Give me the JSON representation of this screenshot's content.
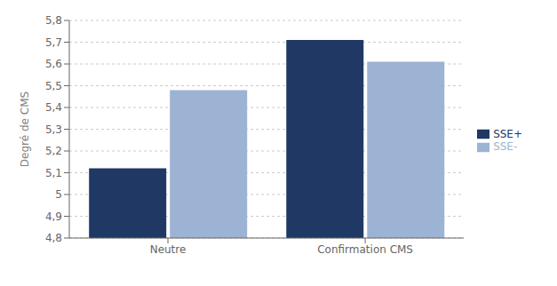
{
  "chart_data": {
    "type": "bar",
    "categories": [
      "Neutre",
      "Confirmation CMS"
    ],
    "series": [
      {
        "name": "SSE+",
        "color": "#1F3864",
        "values": [
          5.12,
          5.71
        ]
      },
      {
        "name": "SSE-",
        "color": "#9DB3D4",
        "values": [
          5.48,
          5.61
        ]
      }
    ],
    "ylabel": "Degré de CMS",
    "ylim": [
      4.8,
      5.8
    ],
    "yticks": [
      {
        "value": 4.8,
        "label": "4,8"
      },
      {
        "value": 4.9,
        "label": "4,9"
      },
      5,
      {
        "value": 5.1,
        "label": "5,1"
      },
      {
        "value": 5.2,
        "label": "5,2"
      },
      {
        "value": 5.3,
        "label": "5,3"
      },
      {
        "value": 5.4,
        "label": "5,4"
      },
      {
        "value": 5.5,
        "label": "5,5"
      },
      {
        "value": 5.6,
        "label": "5,6"
      },
      {
        "value": 5.7,
        "label": "5,7"
      },
      {
        "value": 5.8,
        "label": "5,8"
      }
    ],
    "grid": true,
    "legend": "right"
  }
}
